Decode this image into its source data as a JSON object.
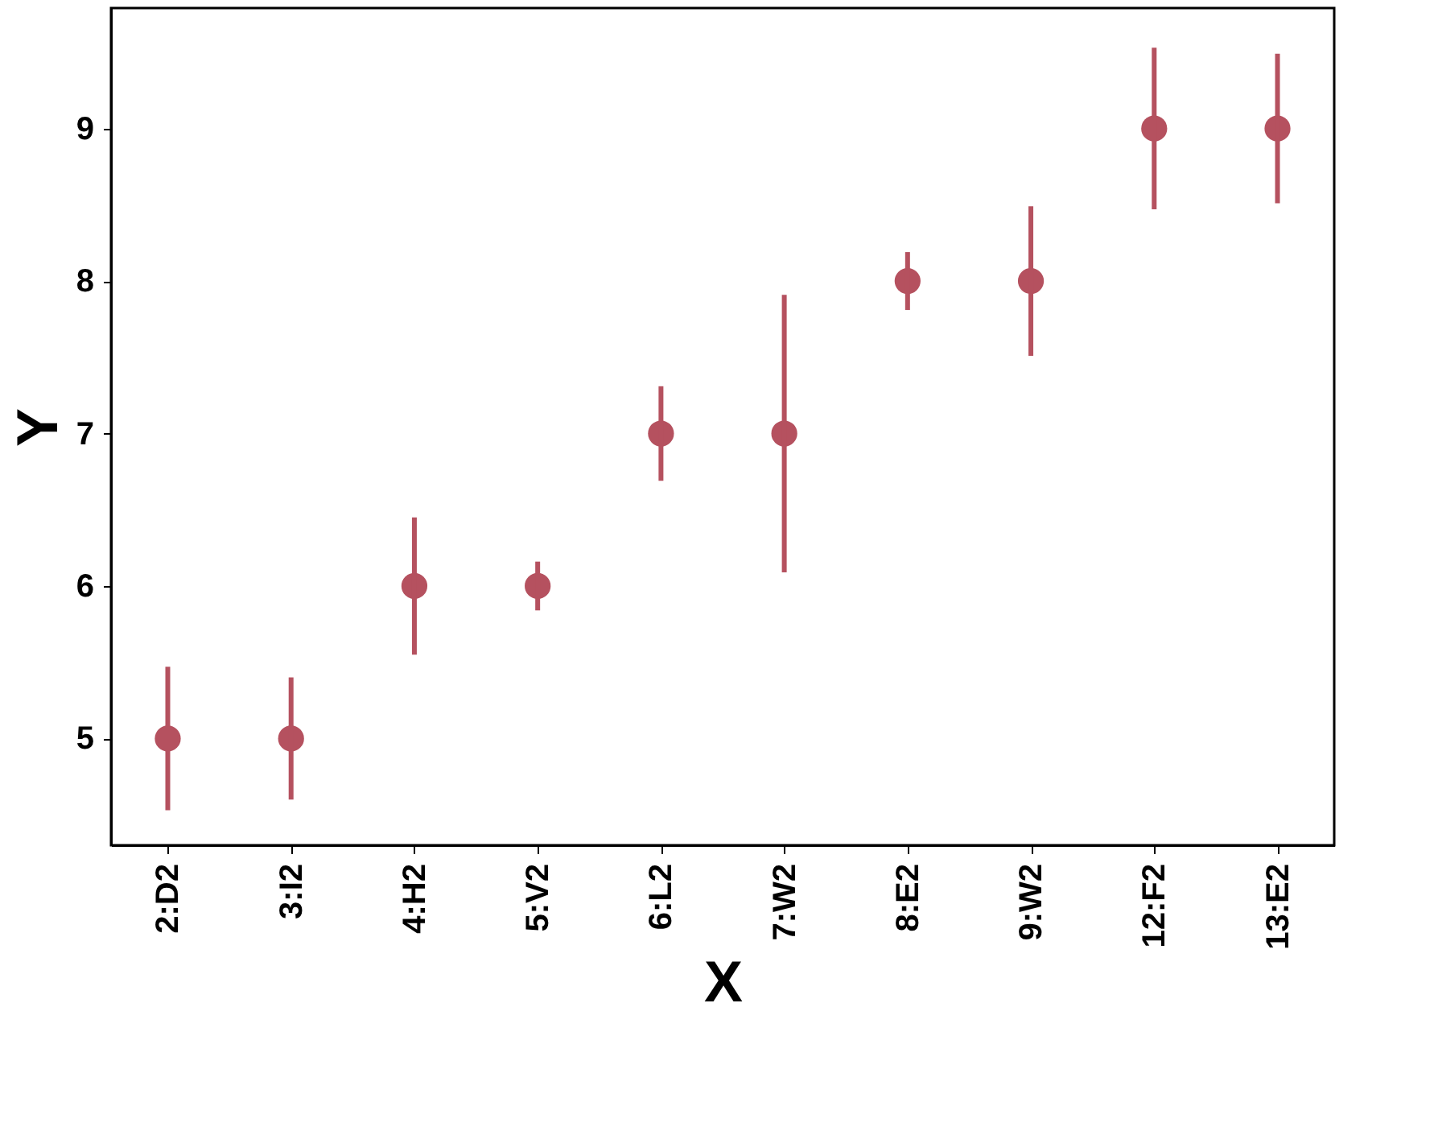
{
  "chart_data": {
    "type": "scatter",
    "xlabel": "X",
    "ylabel": "Y",
    "categories": [
      "2:D2",
      "3:I2",
      "4:H2",
      "5:V2",
      "6:L2",
      "7:W2",
      "8:E2",
      "9:W2",
      "12:F2",
      "13:E2"
    ],
    "values": [
      5,
      5,
      6,
      6,
      7,
      7,
      8,
      8,
      9,
      9
    ],
    "errors": [
      0.47,
      0.4,
      0.45,
      0.16,
      0.31,
      0.91,
      0.19,
      0.49,
      0.53,
      0.49
    ],
    "color": "#b5515f",
    "ylim": [
      4.3,
      9.79
    ],
    "yticks": [
      5,
      6,
      7,
      8,
      9
    ],
    "grid": false,
    "marker": "circle"
  }
}
